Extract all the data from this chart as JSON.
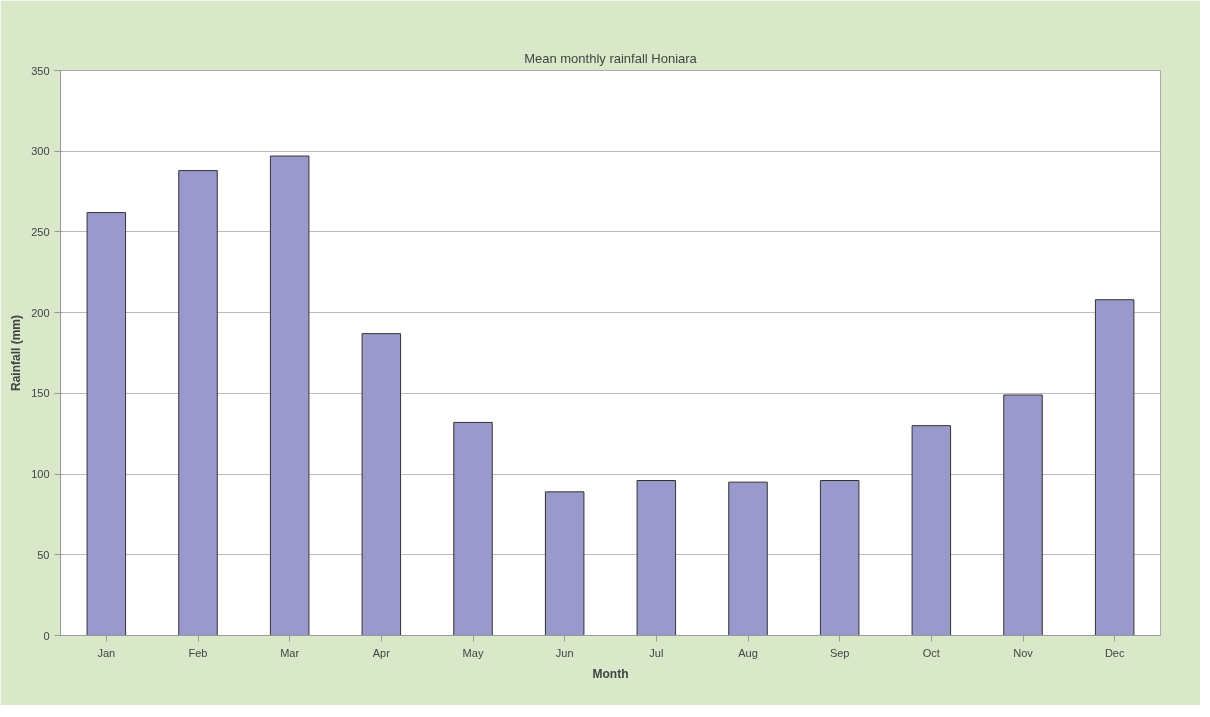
{
  "chart_data": {
    "type": "bar",
    "title": "Mean monthly rainfall Honiara",
    "xlabel": "Month",
    "ylabel": "Rainfall (mm)",
    "categories": [
      "Jan",
      "Feb",
      "Mar",
      "Apr",
      "May",
      "Jun",
      "Jul",
      "Aug",
      "Sep",
      "Oct",
      "Nov",
      "Dec"
    ],
    "values": [
      262,
      288,
      297,
      187,
      132,
      89,
      96,
      95,
      96,
      130,
      149,
      208
    ],
    "color": "#9999cc",
    "ylim": [
      0,
      350
    ],
    "yticks": [
      0,
      50,
      100,
      150,
      200,
      250,
      300,
      350
    ],
    "grid": "y"
  }
}
